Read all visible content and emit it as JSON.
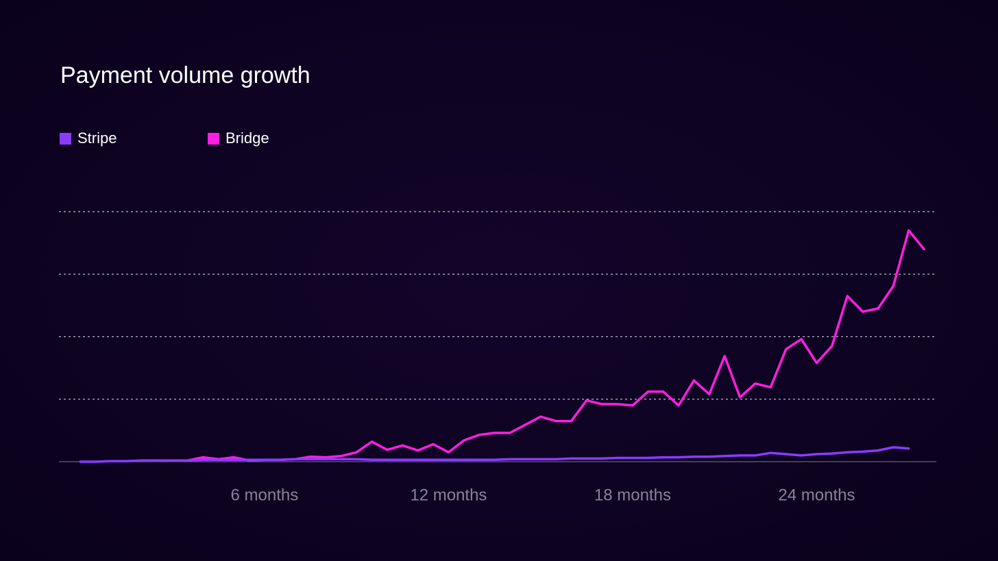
{
  "chart_data": {
    "type": "line",
    "title": "Payment volume growth",
    "x": [
      0,
      0.5,
      1,
      1.5,
      2,
      2.5,
      3,
      3.5,
      4,
      4.5,
      5,
      5.5,
      6,
      6.5,
      7,
      7.5,
      8,
      8.5,
      9,
      9.5,
      10,
      10.5,
      11,
      11.5,
      12,
      12.5,
      13,
      13.5,
      14,
      14.5,
      15,
      15.5,
      16,
      16.5,
      17,
      17.5,
      18,
      18.5,
      19,
      19.5,
      20,
      20.5,
      21,
      21.5,
      22,
      22.5,
      23,
      23.5,
      24,
      24.5,
      25,
      25.5,
      26,
      26.5,
      27,
      27.5
    ],
    "series": [
      {
        "name": "Stripe",
        "color": "#8a3bff",
        "values": [
          0.0,
          0.0,
          0.01,
          0.01,
          0.02,
          0.02,
          0.02,
          0.02,
          0.03,
          0.03,
          0.03,
          0.03,
          0.03,
          0.03,
          0.04,
          0.04,
          0.04,
          0.04,
          0.04,
          0.03,
          0.03,
          0.03,
          0.03,
          0.03,
          0.03,
          0.03,
          0.03,
          0.03,
          0.04,
          0.04,
          0.04,
          0.04,
          0.05,
          0.05,
          0.05,
          0.06,
          0.06,
          0.06,
          0.07,
          0.07,
          0.08,
          0.08,
          0.09,
          0.1,
          0.1,
          0.14,
          0.12,
          0.1,
          0.12,
          0.13,
          0.15,
          0.16,
          0.18,
          0.23,
          0.21,
          null
        ]
      },
      {
        "name": "Bridge",
        "color": "#ff1ee0",
        "values": [
          null,
          null,
          null,
          null,
          null,
          null,
          null,
          0.02,
          0.07,
          0.04,
          0.07,
          0.02,
          0.03,
          0.03,
          0.04,
          0.08,
          0.07,
          0.09,
          0.15,
          0.32,
          0.19,
          0.26,
          0.18,
          0.28,
          0.15,
          0.34,
          0.43,
          0.46,
          0.46,
          0.59,
          0.72,
          0.65,
          0.65,
          0.98,
          0.92,
          0.92,
          0.9,
          1.12,
          1.12,
          0.9,
          1.3,
          1.08,
          1.69,
          1.03,
          1.25,
          1.19,
          1.8,
          1.96,
          1.58,
          1.85,
          2.65,
          2.4,
          2.45,
          2.81,
          3.7,
          3.4
        ]
      }
    ],
    "xlim": [
      -0.7,
      27.9
    ],
    "xticks": [
      {
        "value": 6,
        "label": "6 months"
      },
      {
        "value": 12,
        "label": "12 months"
      },
      {
        "value": 18,
        "label": "18 months"
      },
      {
        "value": 24,
        "label": "24 months"
      }
    ],
    "ylim": [
      0,
      4
    ],
    "yticks": [
      0,
      1,
      2,
      3,
      4
    ],
    "grid": true
  }
}
